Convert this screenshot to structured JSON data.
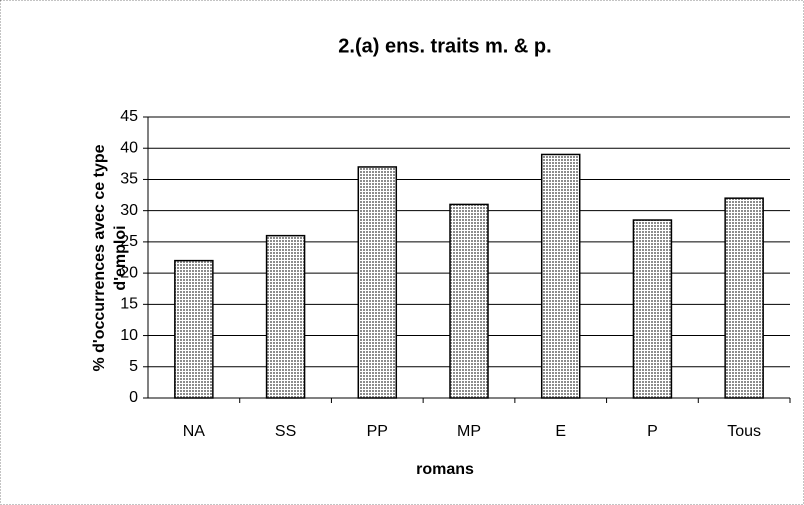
{
  "chart_data": {
    "type": "bar",
    "title": "2.(a) ens. traits m. & p.",
    "xlabel": "romans",
    "ylabel": [
      "% d'occurrences avec ce type",
      "d'emploi"
    ],
    "categories": [
      "NA",
      "SS",
      "PP",
      "MP",
      "E",
      "P",
      "Tous"
    ],
    "values": [
      22,
      26,
      37,
      31,
      39,
      28.5,
      32
    ],
    "color": "#8c8c8c",
    "ylim": [
      0,
      45
    ],
    "yticks": [
      0,
      5,
      10,
      15,
      20,
      25,
      30,
      35,
      40,
      45
    ],
    "grid": true
  }
}
